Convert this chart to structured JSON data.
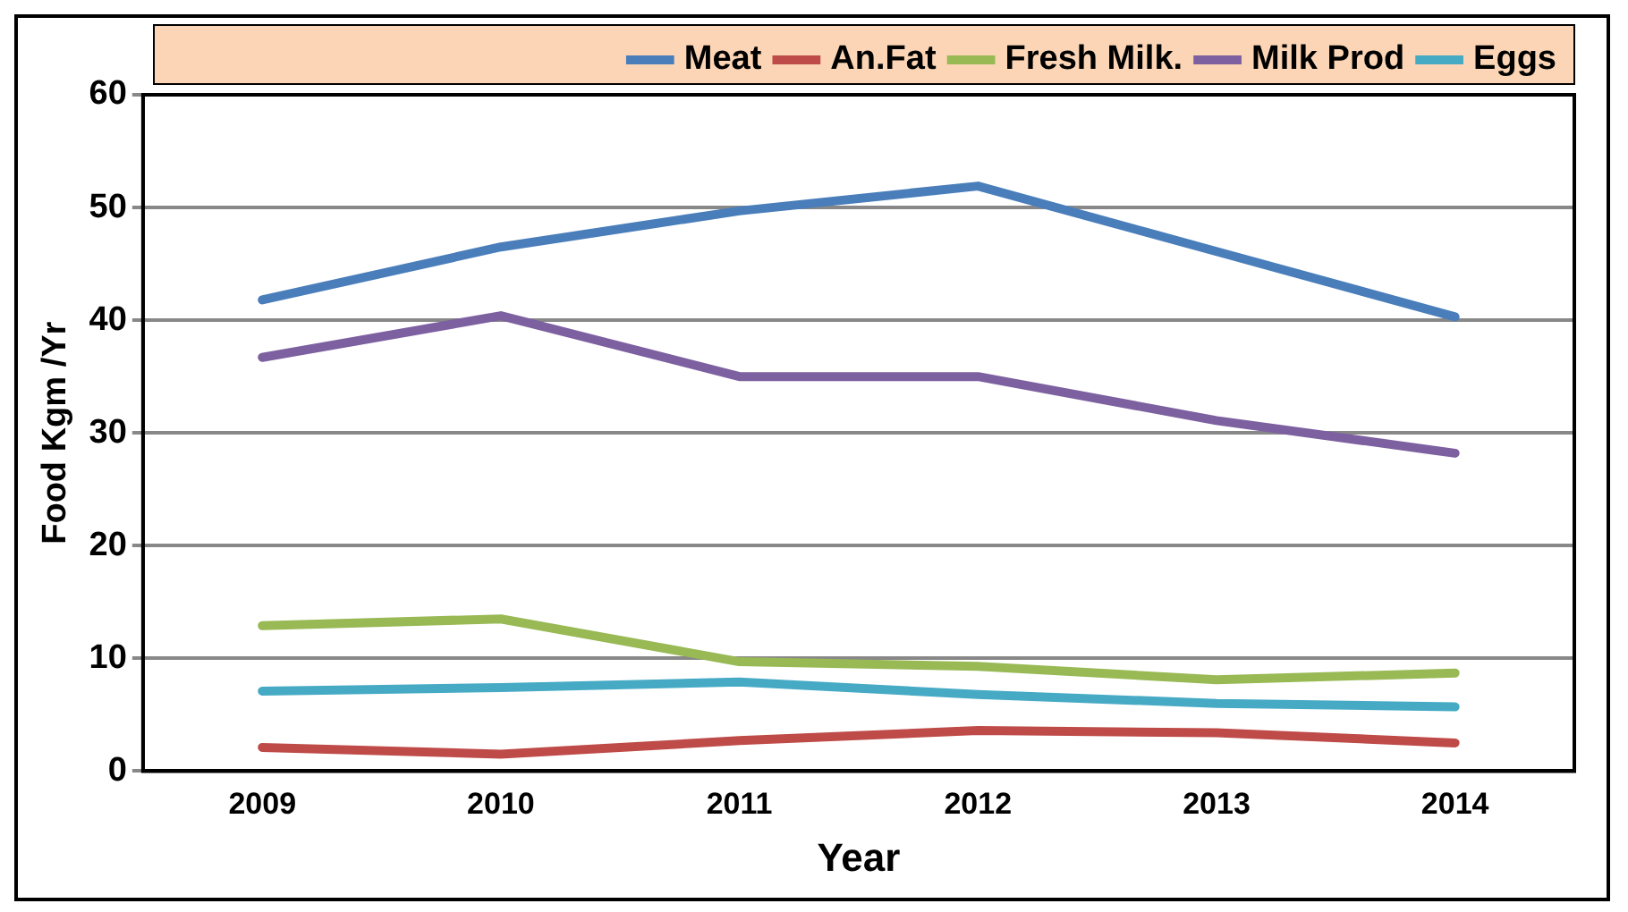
{
  "chart_data": {
    "type": "line",
    "xlabel": "Year",
    "ylabel": "Food Kgm /Yr",
    "categories": [
      "2009",
      "2010",
      "2011",
      "2012",
      "2013",
      "2014"
    ],
    "series": [
      {
        "name": "Meat",
        "color": "#4a7ebb",
        "values": [
          41.8,
          46.5,
          49.7,
          51.9,
          46.1,
          40.3
        ]
      },
      {
        "name": "An.Fat",
        "color": "#be4b48",
        "values": [
          2.1,
          1.5,
          2.7,
          3.6,
          3.4,
          2.5
        ]
      },
      {
        "name": "Fresh Milk.",
        "color": "#98b954",
        "values": [
          12.9,
          13.5,
          9.7,
          9.3,
          8.1,
          8.7
        ]
      },
      {
        "name": "Milk Prod",
        "color": "#7d60a0",
        "values": [
          36.7,
          40.4,
          35.0,
          35.0,
          31.1,
          28.2
        ]
      },
      {
        "name": "Eggs",
        "color": "#46aac5",
        "values": [
          7.1,
          7.4,
          7.9,
          6.8,
          6.0,
          5.7
        ]
      }
    ],
    "ylim": [
      0,
      60
    ],
    "yticks": [
      0,
      10,
      20,
      30,
      40,
      50,
      60
    ],
    "grid": "y",
    "legend": "top",
    "marker": "none",
    "line_style": "solid"
  }
}
